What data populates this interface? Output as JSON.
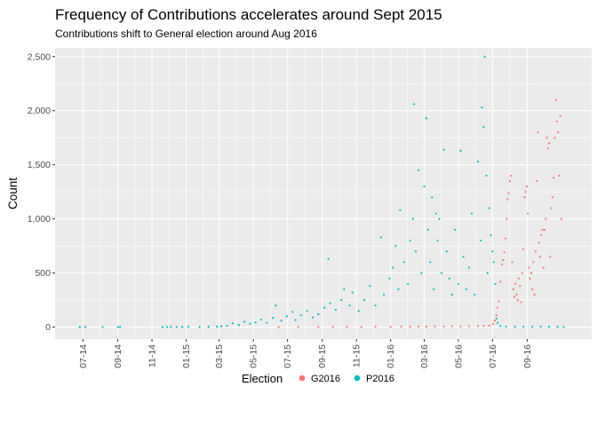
{
  "chart_data": {
    "type": "scatter",
    "title": "Frequency of Contributions accelerates around Sept 2015",
    "subtitle": "Contributions shift to General election around Aug 2016",
    "xlabel": "",
    "ylabel": "Count",
    "x_type": "date",
    "xlim": [
      "2014-05-12",
      "2016-12-25"
    ],
    "ylim": [
      -110,
      2580
    ],
    "y_ticks": [
      {
        "value": 0,
        "label": "0"
      },
      {
        "value": 500,
        "label": "500"
      },
      {
        "value": 1000,
        "label": "1,000"
      },
      {
        "value": 1500,
        "label": "1,500"
      },
      {
        "value": 2000,
        "label": "2,000"
      },
      {
        "value": 2500,
        "label": "2,500"
      }
    ],
    "x_ticks": [
      {
        "value": "2014-07-01",
        "label": "07-14"
      },
      {
        "value": "2014-09-01",
        "label": "09-14"
      },
      {
        "value": "2014-11-01",
        "label": "11-14"
      },
      {
        "value": "2015-01-01",
        "label": "01-15"
      },
      {
        "value": "2015-03-01",
        "label": "03-15"
      },
      {
        "value": "2015-05-01",
        "label": "05-15"
      },
      {
        "value": "2015-07-01",
        "label": "07-15"
      },
      {
        "value": "2015-09-01",
        "label": "09-15"
      },
      {
        "value": "2015-11-01",
        "label": "11-15"
      },
      {
        "value": "2016-01-01",
        "label": "01-16"
      },
      {
        "value": "2016-03-01",
        "label": "03-16"
      },
      {
        "value": "2016-05-01",
        "label": "05-16"
      },
      {
        "value": "2016-07-01",
        "label": "07-16"
      },
      {
        "value": "2016-09-01",
        "label": "09-16"
      }
    ],
    "grid": true,
    "legend": {
      "title": "Election",
      "position": "bottom"
    },
    "series": [
      {
        "name": "G2016",
        "color": "#F8766D",
        "points": [
          [
            "2015-06-15",
            0
          ],
          [
            "2015-07-20",
            1
          ],
          [
            "2015-08-25",
            2
          ],
          [
            "2015-09-20",
            1
          ],
          [
            "2015-10-15",
            3
          ],
          [
            "2015-11-10",
            2
          ],
          [
            "2015-12-05",
            4
          ],
          [
            "2016-01-01",
            3
          ],
          [
            "2016-01-20",
            5
          ],
          [
            "2016-02-05",
            4
          ],
          [
            "2016-02-20",
            6
          ],
          [
            "2016-03-05",
            5
          ],
          [
            "2016-03-20",
            7
          ],
          [
            "2016-04-05",
            6
          ],
          [
            "2016-04-20",
            8
          ],
          [
            "2016-05-05",
            7
          ],
          [
            "2016-05-20",
            9
          ],
          [
            "2016-06-05",
            10
          ],
          [
            "2016-06-15",
            12
          ],
          [
            "2016-06-25",
            14
          ],
          [
            "2016-07-02",
            30
          ],
          [
            "2016-07-05",
            60
          ],
          [
            "2016-07-08",
            110
          ],
          [
            "2016-07-10",
            180
          ],
          [
            "2016-07-12",
            240
          ],
          [
            "2016-07-15",
            420
          ],
          [
            "2016-07-18",
            580
          ],
          [
            "2016-07-20",
            620
          ],
          [
            "2016-07-22",
            690
          ],
          [
            "2016-07-24",
            820
          ],
          [
            "2016-07-26",
            1000
          ],
          [
            "2016-07-28",
            1180
          ],
          [
            "2016-07-30",
            1240
          ],
          [
            "2016-08-01",
            1350
          ],
          [
            "2016-08-03",
            1400
          ],
          [
            "2016-08-05",
            600
          ],
          [
            "2016-08-07",
            350
          ],
          [
            "2016-08-09",
            280
          ],
          [
            "2016-08-11",
            400
          ],
          [
            "2016-08-13",
            300
          ],
          [
            "2016-08-15",
            250
          ],
          [
            "2016-08-17",
            450
          ],
          [
            "2016-08-19",
            380
          ],
          [
            "2016-08-21",
            230
          ],
          [
            "2016-08-23",
            500
          ],
          [
            "2016-08-25",
            720
          ],
          [
            "2016-08-27",
            1200
          ],
          [
            "2016-08-29",
            1250
          ],
          [
            "2016-08-31",
            1300
          ],
          [
            "2016-09-02",
            1050
          ],
          [
            "2016-09-04",
            550
          ],
          [
            "2016-09-06",
            450
          ],
          [
            "2016-09-08",
            500
          ],
          [
            "2016-09-10",
            350
          ],
          [
            "2016-09-12",
            600
          ],
          [
            "2016-09-14",
            300
          ],
          [
            "2016-09-16",
            700
          ],
          [
            "2016-09-18",
            1350
          ],
          [
            "2016-09-20",
            1800
          ],
          [
            "2016-09-22",
            780
          ],
          [
            "2016-09-24",
            650
          ],
          [
            "2016-09-26",
            850
          ],
          [
            "2016-09-28",
            900
          ],
          [
            "2016-09-30",
            550
          ],
          [
            "2016-10-02",
            900
          ],
          [
            "2016-10-04",
            1000
          ],
          [
            "2016-10-06",
            1750
          ],
          [
            "2016-10-08",
            1650
          ],
          [
            "2016-10-10",
            1700
          ],
          [
            "2016-10-12",
            650
          ],
          [
            "2016-10-14",
            1100
          ],
          [
            "2016-10-16",
            1200
          ],
          [
            "2016-10-18",
            1380
          ],
          [
            "2016-10-20",
            1750
          ],
          [
            "2016-10-22",
            2100
          ],
          [
            "2016-10-24",
            1900
          ],
          [
            "2016-10-26",
            1800
          ],
          [
            "2016-10-28",
            1400
          ],
          [
            "2016-10-30",
            1950
          ],
          [
            "2016-11-01",
            1000
          ]
        ]
      },
      {
        "name": "P2016",
        "color": "#00BFC4",
        "points": [
          [
            "2014-06-25",
            1
          ],
          [
            "2014-07-05",
            2
          ],
          [
            "2014-08-05",
            1
          ],
          [
            "2014-09-01",
            1
          ],
          [
            "2014-09-05",
            2
          ],
          [
            "2014-11-20",
            1
          ],
          [
            "2014-11-28",
            1
          ],
          [
            "2014-12-05",
            2
          ],
          [
            "2014-12-15",
            1
          ],
          [
            "2014-12-25",
            2
          ],
          [
            "2015-01-05",
            3
          ],
          [
            "2015-01-25",
            2
          ],
          [
            "2015-02-10",
            4
          ],
          [
            "2015-02-25",
            5
          ],
          [
            "2015-03-05",
            8
          ],
          [
            "2015-03-15",
            12
          ],
          [
            "2015-03-25",
            35
          ],
          [
            "2015-04-05",
            20
          ],
          [
            "2015-04-15",
            50
          ],
          [
            "2015-04-25",
            30
          ],
          [
            "2015-05-05",
            45
          ],
          [
            "2015-05-15",
            70
          ],
          [
            "2015-05-25",
            40
          ],
          [
            "2015-06-05",
            85
          ],
          [
            "2015-06-10",
            200
          ],
          [
            "2015-06-20",
            60
          ],
          [
            "2015-06-30",
            100
          ],
          [
            "2015-07-10",
            140
          ],
          [
            "2015-07-15",
            65
          ],
          [
            "2015-07-25",
            110
          ],
          [
            "2015-08-05",
            150
          ],
          [
            "2015-08-15",
            90
          ],
          [
            "2015-08-25",
            120
          ],
          [
            "2015-09-05",
            180
          ],
          [
            "2015-09-12",
            630
          ],
          [
            "2015-09-15",
            220
          ],
          [
            "2015-09-25",
            160
          ],
          [
            "2015-10-05",
            250
          ],
          [
            "2015-10-10",
            350
          ],
          [
            "2015-10-20",
            200
          ],
          [
            "2015-10-25",
            320
          ],
          [
            "2015-11-05",
            150
          ],
          [
            "2015-11-15",
            250
          ],
          [
            "2015-11-25",
            380
          ],
          [
            "2015-12-05",
            200
          ],
          [
            "2015-12-15",
            830
          ],
          [
            "2015-12-20",
            300
          ],
          [
            "2015-12-30",
            450
          ],
          [
            "2016-01-05",
            550
          ],
          [
            "2016-01-10",
            750
          ],
          [
            "2016-01-15",
            350
          ],
          [
            "2016-01-18",
            1080
          ],
          [
            "2016-01-25",
            600
          ],
          [
            "2016-02-01",
            400
          ],
          [
            "2016-02-05",
            800
          ],
          [
            "2016-02-10",
            1000
          ],
          [
            "2016-02-12",
            2060
          ],
          [
            "2016-02-15",
            700
          ],
          [
            "2016-02-20",
            1450
          ],
          [
            "2016-02-25",
            500
          ],
          [
            "2016-03-01",
            1300
          ],
          [
            "2016-03-05",
            1930
          ],
          [
            "2016-03-08",
            900
          ],
          [
            "2016-03-12",
            600
          ],
          [
            "2016-03-15",
            1200
          ],
          [
            "2016-03-18",
            350
          ],
          [
            "2016-03-22",
            1050
          ],
          [
            "2016-03-25",
            800
          ],
          [
            "2016-03-28",
            1000
          ],
          [
            "2016-04-01",
            500
          ],
          [
            "2016-04-05",
            1640
          ],
          [
            "2016-04-10",
            700
          ],
          [
            "2016-04-15",
            450
          ],
          [
            "2016-04-20",
            300
          ],
          [
            "2016-04-25",
            900
          ],
          [
            "2016-05-01",
            400
          ],
          [
            "2016-05-05",
            1630
          ],
          [
            "2016-05-10",
            650
          ],
          [
            "2016-05-15",
            350
          ],
          [
            "2016-05-20",
            550
          ],
          [
            "2016-05-25",
            1050
          ],
          [
            "2016-05-30",
            300
          ],
          [
            "2016-06-05",
            1530
          ],
          [
            "2016-06-10",
            800
          ],
          [
            "2016-06-12",
            2030
          ],
          [
            "2016-06-15",
            1850
          ],
          [
            "2016-06-17",
            2500
          ],
          [
            "2016-06-20",
            1400
          ],
          [
            "2016-06-22",
            500
          ],
          [
            "2016-06-25",
            1100
          ],
          [
            "2016-06-28",
            850
          ],
          [
            "2016-07-01",
            700
          ],
          [
            "2016-07-03",
            600
          ],
          [
            "2016-07-06",
            400
          ],
          [
            "2016-07-08",
            80
          ],
          [
            "2016-07-10",
            40
          ],
          [
            "2016-07-15",
            10
          ],
          [
            "2016-07-25",
            5
          ],
          [
            "2016-08-10",
            3
          ],
          [
            "2016-08-25",
            4
          ],
          [
            "2016-09-10",
            3
          ],
          [
            "2016-09-25",
            5
          ],
          [
            "2016-10-10",
            4
          ],
          [
            "2016-10-25",
            3
          ],
          [
            "2016-11-05",
            2
          ]
        ]
      }
    ]
  }
}
